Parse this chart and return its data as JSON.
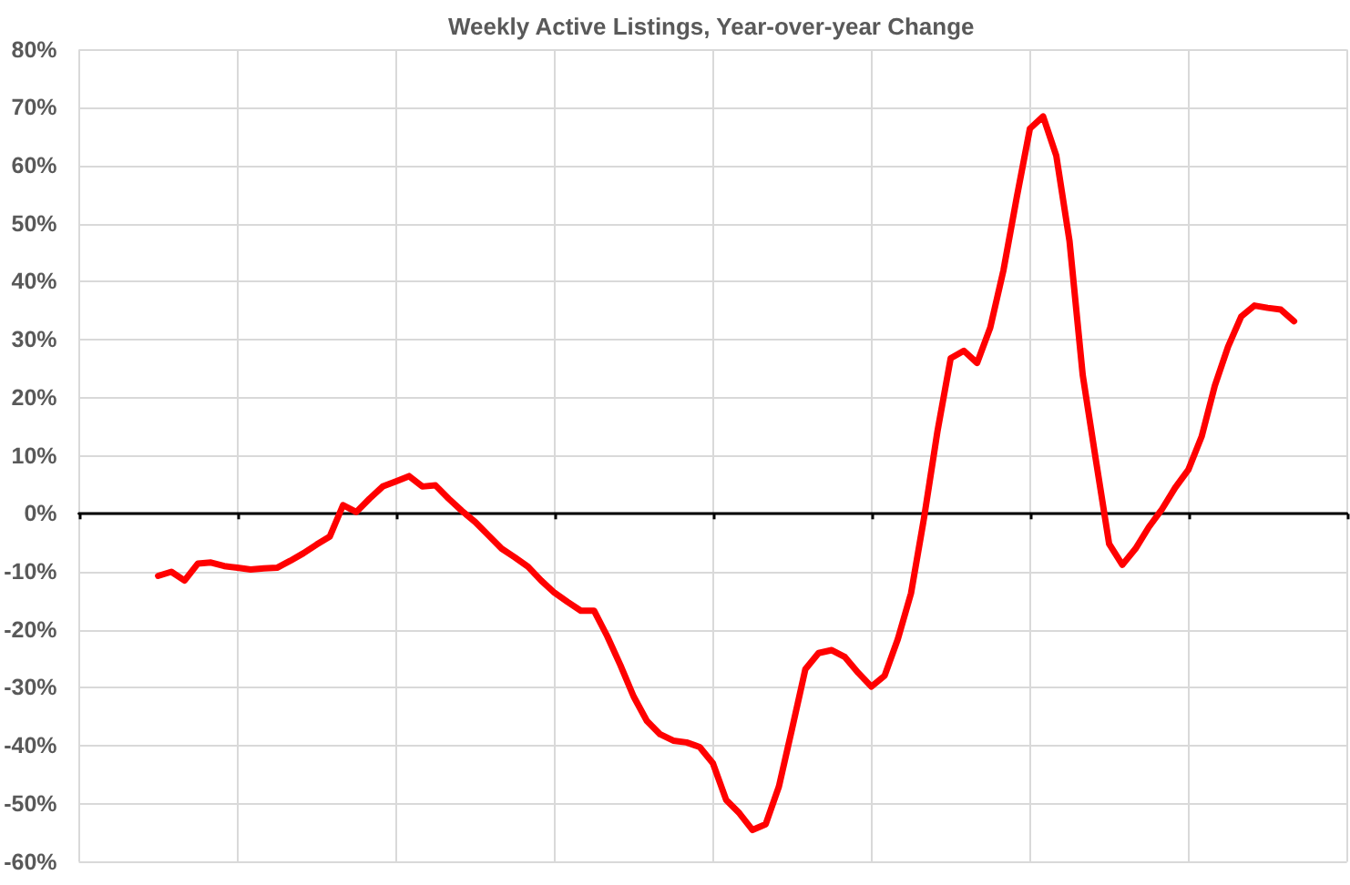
{
  "chart_data": {
    "type": "line",
    "title": "Weekly Active Listings, Year-over-year Change",
    "categories": [
      null,
      null,
      null,
      null,
      null,
      null,
      null,
      null,
      null,
      null,
      null,
      null,
      null,
      null,
      null,
      null,
      null,
      null,
      null,
      null,
      null,
      null,
      null,
      null,
      null,
      null,
      null,
      null,
      null,
      null,
      null,
      null,
      null,
      null,
      null,
      null,
      null,
      null,
      null,
      null,
      null,
      null,
      null,
      null,
      null,
      null,
      null,
      null,
      null,
      null,
      null,
      null,
      null,
      null,
      null,
      null,
      null,
      null,
      null,
      null,
      null,
      null,
      null,
      null,
      null,
      null,
      null,
      null,
      null,
      null,
      null,
      null,
      null,
      null,
      null,
      null,
      null,
      null,
      null,
      null,
      null,
      null,
      null,
      null,
      null,
      null,
      null,
      null,
      null,
      null,
      null,
      null,
      null,
      null,
      null,
      null,
      null
    ],
    "values": [
      null,
      null,
      null,
      null,
      null,
      null,
      -10.7,
      -10.0,
      -11.5,
      -8.6,
      -8.4,
      -9.0,
      -9.3,
      -9.6,
      -9.4,
      -9.3,
      -8.1,
      -6.8,
      -5.3,
      -3.9,
      1.5,
      0.3,
      2.6,
      4.7,
      5.6,
      6.5,
      4.7,
      4.9,
      2.6,
      0.5,
      -1.4,
      -3.7,
      -6.0,
      -7.5,
      -9.1,
      -11.5,
      -13.6,
      -15.2,
      -16.7,
      -16.7,
      -21.1,
      -26.1,
      -31.5,
      -35.7,
      -38.0,
      -39.1,
      -39.4,
      -40.2,
      -43.0,
      -49.3,
      -51.6,
      -54.5,
      -53.5,
      -47.0,
      -37.0,
      -26.8,
      -24.0,
      -23.5,
      -24.7,
      -27.4,
      -29.8,
      -27.9,
      -21.6,
      -13.7,
      -0.5,
      14.2,
      26.8,
      28.1,
      26.0,
      32.1,
      42.0,
      54.5,
      66.4,
      68.5,
      61.7,
      47.0,
      23.9,
      9.2,
      -5.2,
      -8.8,
      -6.0,
      -2.3,
      0.8,
      4.5,
      7.6,
      13.3,
      22.1,
      28.8,
      34.0,
      35.9,
      35.5,
      35.2,
      33.2,
      null,
      null,
      null,
      null
    ],
    "color": "#ff0000",
    "ylim": [
      -60,
      80
    ],
    "yticks": [
      {
        "value": -60,
        "label": "-60%"
      },
      {
        "value": -50,
        "label": "-50%"
      },
      {
        "value": -40,
        "label": "-40%"
      },
      {
        "value": -30,
        "label": "-30%"
      },
      {
        "value": -20,
        "label": "-20%"
      },
      {
        "value": -10,
        "label": "-10%"
      },
      {
        "value": 0,
        "label": "0%"
      },
      {
        "value": 10,
        "label": "10%"
      },
      {
        "value": 20,
        "label": "20%"
      },
      {
        "value": 30,
        "label": "30%"
      },
      {
        "value": 40,
        "label": "40%"
      },
      {
        "value": 50,
        "label": "50%"
      },
      {
        "value": 60,
        "label": "60%"
      },
      {
        "value": 70,
        "label": "70%"
      },
      {
        "value": 80,
        "label": "80%"
      }
    ],
    "grid": true,
    "tick_labels": "y"
  }
}
